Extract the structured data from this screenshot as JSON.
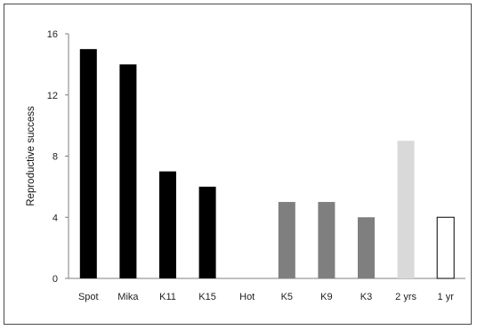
{
  "chart_data": {
    "type": "bar",
    "title": "",
    "xlabel": "",
    "ylabel": "Reproductive success",
    "ylim": [
      0,
      16
    ],
    "yticks": [
      0,
      4,
      8,
      12,
      16
    ],
    "grid": false,
    "categories": [
      "Spot",
      "Mika",
      "K11",
      "K15",
      "Hot",
      "K5",
      "K9",
      "K3",
      "2 yrs",
      "1 yr"
    ],
    "values": [
      15,
      14,
      7,
      6,
      0,
      5,
      5,
      4,
      9,
      4
    ],
    "bar_colors": [
      "#000000",
      "#000000",
      "#000000",
      "#000000",
      "#000000",
      "#7f7f7f",
      "#7f7f7f",
      "#7f7f7f",
      "#d9d9d9",
      "#ffffff"
    ],
    "bar_outline_color": "#000000"
  }
}
